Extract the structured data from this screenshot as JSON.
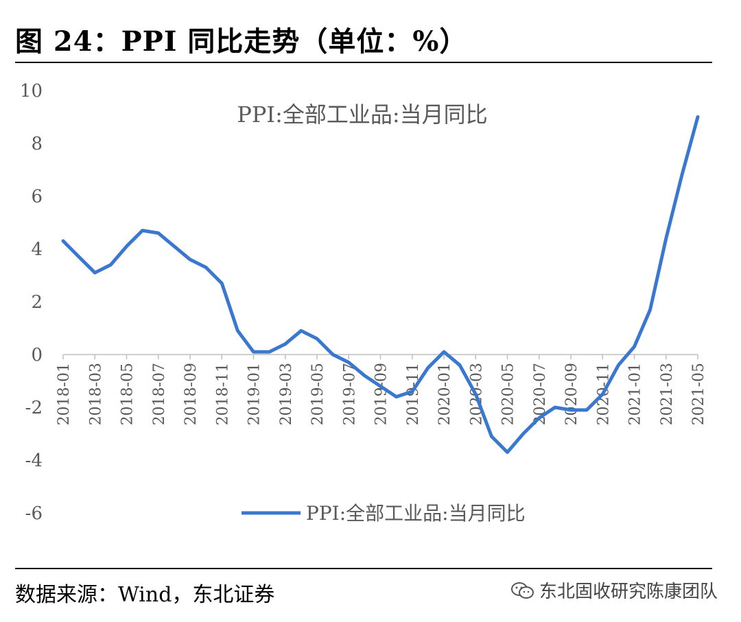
{
  "figure": {
    "title": "图 24：PPI 同比走势（单位：%）",
    "source": "数据来源：Wind，东北证券",
    "watermark": "东北固收研究陈康团队",
    "watermark_icon": "wechat-icon"
  },
  "chart_data": {
    "type": "line",
    "title": "PPI:全部工业品:当月同比",
    "xlabel": "",
    "ylabel": "",
    "ylim": [
      -6,
      10
    ],
    "yticks": [
      10,
      8,
      6,
      4,
      2,
      0,
      -2,
      -4,
      -6
    ],
    "x_tick_labels": [
      "2018-01",
      "2018-03",
      "2018-05",
      "2018-07",
      "2018-09",
      "2018-11",
      "2019-01",
      "2019-03",
      "2019-05",
      "2019-07",
      "2019-09",
      "2019-11",
      "2020-01",
      "2020-03",
      "2020-05",
      "2020-07",
      "2020-09",
      "2020-11",
      "2021-01",
      "2021-03",
      "2021-05"
    ],
    "legend_position": "bottom",
    "grid": false,
    "color": "#3A78D0",
    "x": [
      "2018-01",
      "2018-02",
      "2018-03",
      "2018-04",
      "2018-05",
      "2018-06",
      "2018-07",
      "2018-08",
      "2018-09",
      "2018-10",
      "2018-11",
      "2018-12",
      "2019-01",
      "2019-02",
      "2019-03",
      "2019-04",
      "2019-05",
      "2019-06",
      "2019-07",
      "2019-08",
      "2019-09",
      "2019-10",
      "2019-11",
      "2019-12",
      "2020-01",
      "2020-02",
      "2020-03",
      "2020-04",
      "2020-05",
      "2020-06",
      "2020-07",
      "2020-08",
      "2020-09",
      "2020-10",
      "2020-11",
      "2020-12",
      "2021-01",
      "2021-02",
      "2021-03",
      "2021-04",
      "2021-05"
    ],
    "series": [
      {
        "name": "PPI:全部工业品:当月同比",
        "values": [
          4.3,
          3.7,
          3.1,
          3.4,
          4.1,
          4.7,
          4.6,
          4.1,
          3.6,
          3.3,
          2.7,
          0.9,
          0.1,
          0.1,
          0.4,
          0.9,
          0.6,
          0.0,
          -0.3,
          -0.8,
          -1.2,
          -1.6,
          -1.4,
          -0.5,
          0.1,
          -0.4,
          -1.5,
          -3.1,
          -3.7,
          -3.0,
          -2.4,
          -2.0,
          -2.1,
          -2.1,
          -1.5,
          -0.4,
          0.3,
          1.7,
          4.4,
          6.8,
          9.0
        ]
      }
    ]
  }
}
